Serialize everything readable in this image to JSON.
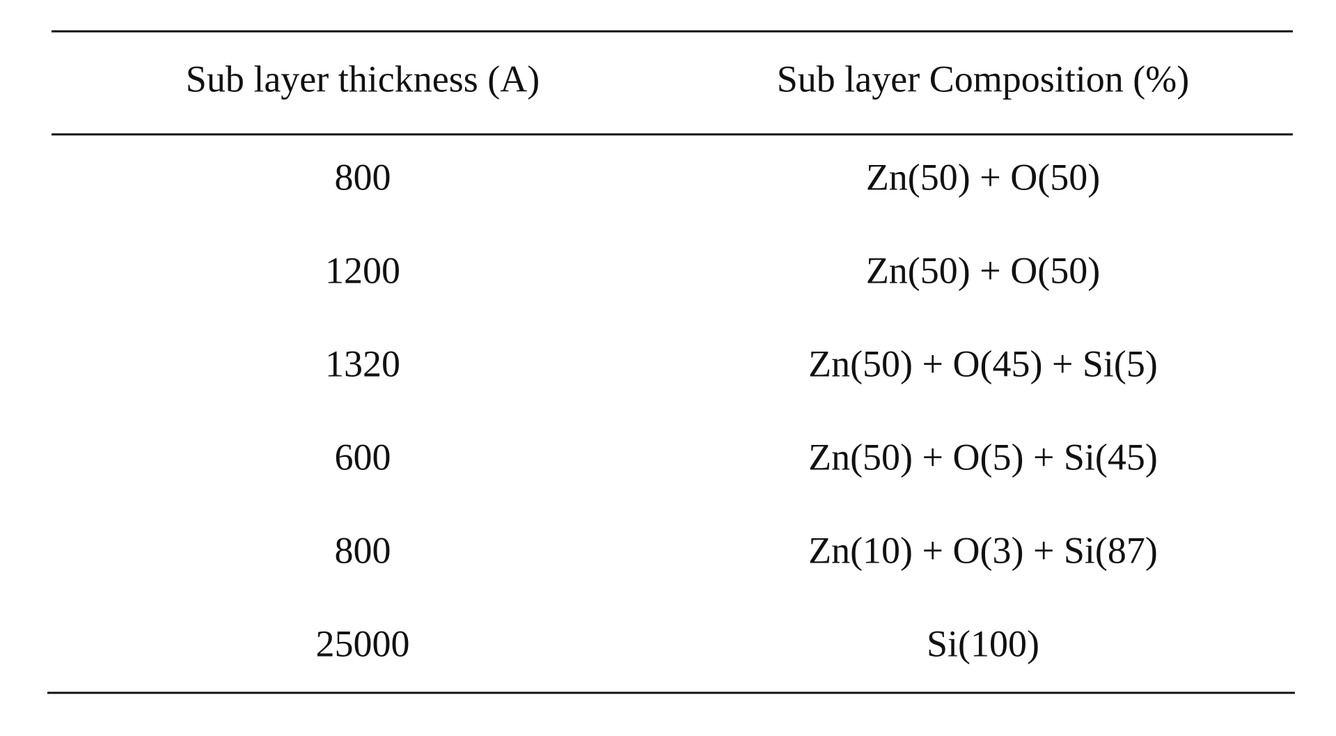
{
  "table": {
    "header": [
      "Sub layer thickness (A)",
      "Sub layer Composition (%)"
    ],
    "rows": [
      [
        800,
        "Zn(50) + O(50)"
      ],
      [
        1200,
        "Zn(50) + O(50)"
      ],
      [
        1320,
        "Zn(50) + O(45) + Si(5)"
      ],
      [
        600,
        "Zn(50) + O(5) + Si(45)"
      ],
      [
        800,
        "Zn(10) + O(3) + Si(87)"
      ],
      [
        25000,
        "Si(100)"
      ]
    ]
  }
}
